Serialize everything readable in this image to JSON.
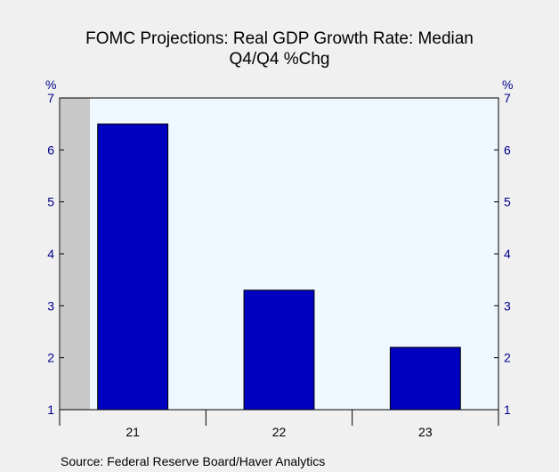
{
  "chart_data": {
    "type": "bar",
    "title": "FOMC Projections: Real GDP Growth Rate: Median",
    "subtitle": "Q4/Q4 %Chg",
    "categories": [
      "21",
      "22",
      "23"
    ],
    "values": [
      6.5,
      3.3,
      2.2
    ],
    "ylim": [
      1,
      7
    ],
    "yticks": [
      "1",
      "2",
      "3",
      "4",
      "5",
      "6",
      "7"
    ],
    "y_unit_left": "%",
    "y_unit_right": "%",
    "xlabel": "",
    "ylabel": "",
    "grid": false,
    "source": "Source:  Federal Reserve Board/Haver Analytics",
    "colors": {
      "bar": "#0000c0",
      "plot_bg": "#f0f8ff",
      "shaded": "#c8c8c8",
      "tick_text": "#00008b"
    }
  }
}
